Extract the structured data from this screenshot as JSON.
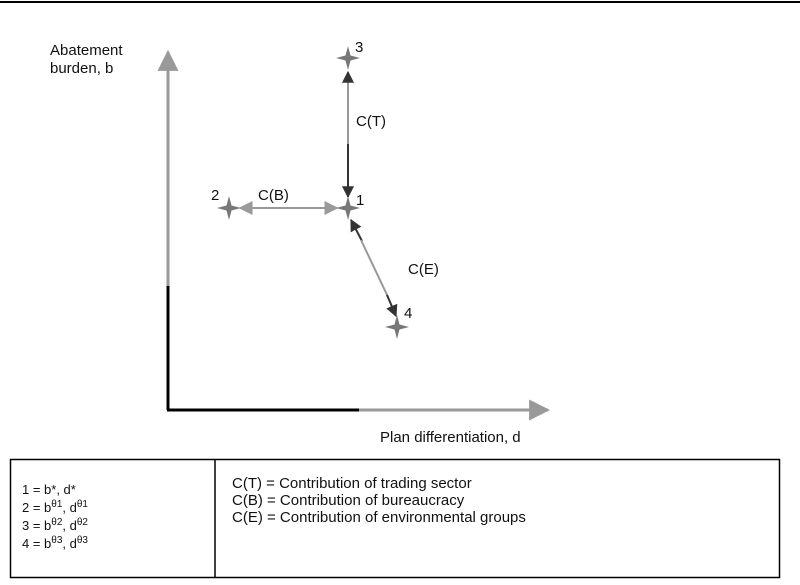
{
  "axes": {
    "y_label": [
      "Abatement",
      "burden, b"
    ],
    "x_label": "Plan differentiation, d"
  },
  "nodes": [
    {
      "label": "1"
    },
    {
      "label": "2"
    },
    {
      "label": "3"
    },
    {
      "label": "4"
    }
  ],
  "edges": [
    {
      "label": "C(T)"
    },
    {
      "label": "C(B)"
    },
    {
      "label": "C(E)"
    }
  ],
  "legend": {
    "left": [
      [
        {
          "text": "1 = b*, d*"
        }
      ],
      [
        {
          "text": "2 = b"
        },
        {
          "sup": "θ1"
        },
        {
          "text": ", d"
        },
        {
          "sup": "θ1"
        }
      ],
      [
        {
          "text": "3 = b"
        },
        {
          "sup": "θ2"
        },
        {
          "text": ", d"
        },
        {
          "sup": "θ2"
        }
      ],
      [
        {
          "text": "4 = b"
        },
        {
          "sup": "θ3"
        },
        {
          "text": ", d"
        },
        {
          "sup": "θ3"
        }
      ]
    ],
    "right": [
      "C(T) = Contribution of trading sector",
      "C(B) = Contribution of bureaucracy",
      "C(E) = Contribution of environmental groups"
    ]
  }
}
